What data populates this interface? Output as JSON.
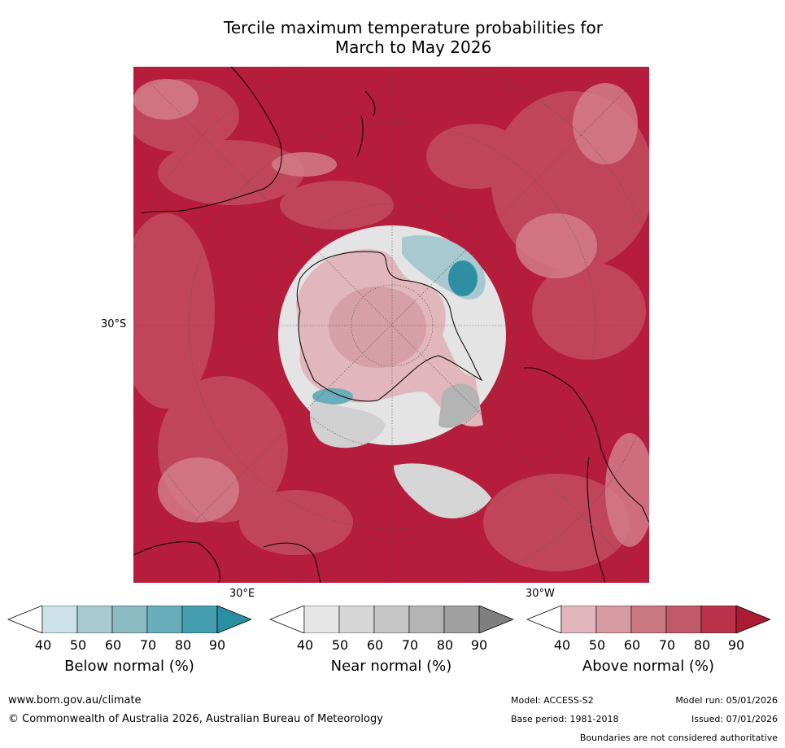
{
  "title_line1": "Tercile maximum temperature probabilities for",
  "title_line2": "March to May 2026",
  "axis_labels": {
    "lat": "30°S",
    "lon_east": "30°E",
    "lon_west": "30°W"
  },
  "colorbars": [
    {
      "name": "Below normal (%)",
      "ticks": [
        "40",
        "50",
        "60",
        "70",
        "80",
        "90"
      ],
      "colors": [
        "#ffffff",
        "#cce2e8",
        "#a8c9d0",
        "#8bbac3",
        "#6aaebb",
        "#469fb0",
        "#2a8fa3"
      ]
    },
    {
      "name": "Near normal (%)",
      "ticks": [
        "40",
        "50",
        "60",
        "70",
        "80",
        "90"
      ],
      "colors": [
        "#ffffff",
        "#e6e6e6",
        "#d6d6d6",
        "#c6c6c6",
        "#b4b4b4",
        "#a0a0a0",
        "#7f7f7f"
      ]
    },
    {
      "name": "Above normal (%)",
      "ticks": [
        "40",
        "50",
        "60",
        "70",
        "80",
        "90"
      ],
      "colors": [
        "#ffffff",
        "#e1b6bc",
        "#d59aa2",
        "#c97882",
        "#c05a68",
        "#b83349",
        "#ad1a33"
      ]
    }
  ],
  "footer": {
    "url": "www.bom.gov.au/climate",
    "copyright": "© Commonwealth of Australia 2026, Australian Bureau of Meteorology",
    "model": "Model: ACCESS-S2",
    "model_run": "Model run: 05/01/2026",
    "base_period": "Base period: 1981-2018",
    "issued": "Issued: 07/01/2026",
    "disclaimer": "Boundaries are not considered authoritative"
  },
  "colors": {
    "above_dark": "#b61c3b",
    "above_mid": "#c24a5c",
    "below": "#2e8fa3",
    "near": "#c8c8c8"
  }
}
